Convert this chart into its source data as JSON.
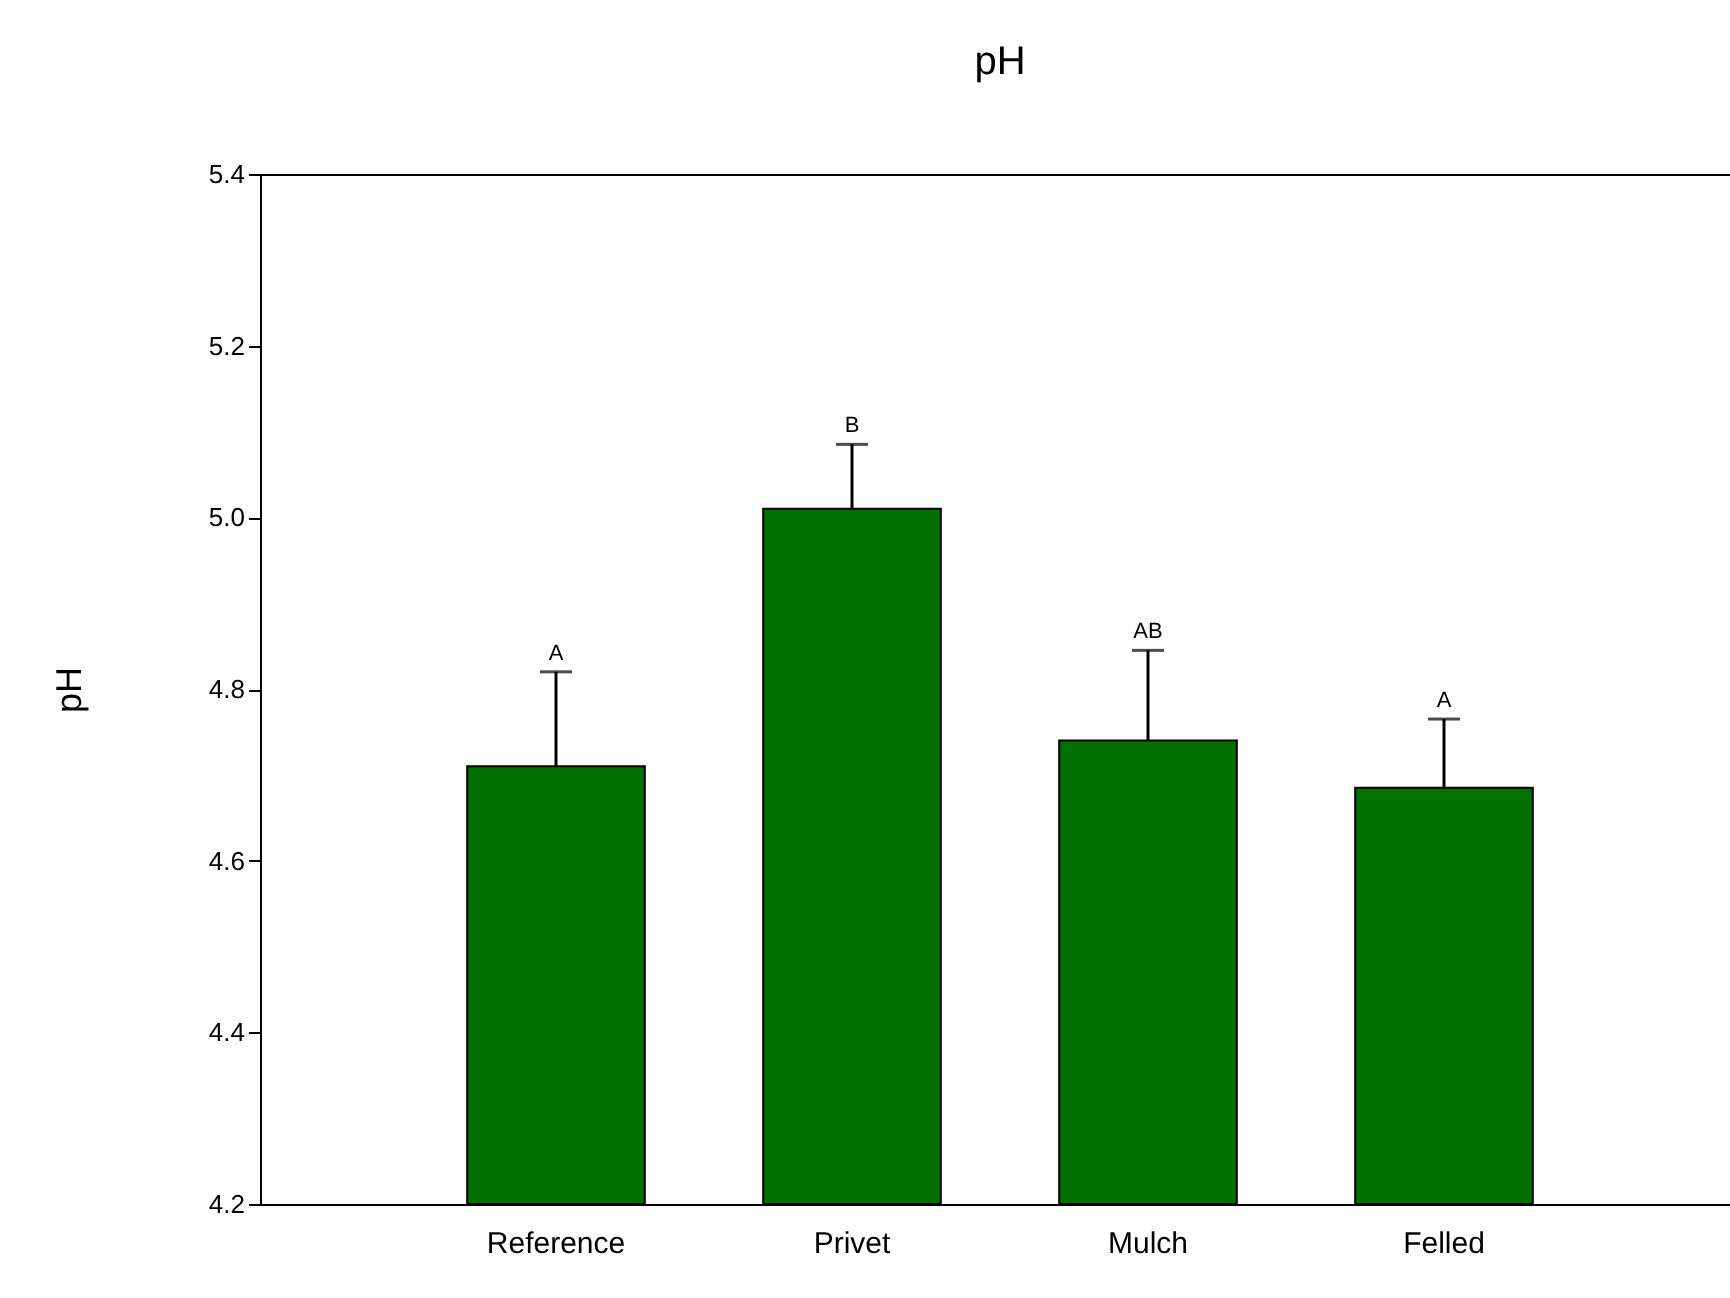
{
  "chart_data": {
    "type": "bar",
    "title": "pH",
    "ylabel": "pH",
    "categories": [
      "Reference",
      "Privet",
      "Mulch",
      "Felled"
    ],
    "values": [
      4.71,
      5.01,
      4.74,
      4.685
    ],
    "errors": [
      [
        4.71,
        4.82
      ],
      [
        5.01,
        5.085
      ],
      [
        4.74,
        4.845
      ],
      [
        4.685,
        4.765
      ]
    ],
    "color": "#007000",
    "ylim": [
      4.2,
      5.4
    ],
    "yticks": [
      {
        "value": 4.2,
        "label": "4.2"
      },
      {
        "value": 4.4,
        "label": "4.4"
      },
      {
        "value": 4.6,
        "label": "4.6"
      },
      {
        "value": 4.8,
        "label": "4.8"
      },
      {
        "value": 5.0,
        "label": "5.0"
      },
      {
        "value": 5.2,
        "label": "5.2"
      },
      {
        "value": 5.4,
        "label": "5.4"
      }
    ],
    "annotations": [
      {
        "text": "A",
        "x": "Reference",
        "y": 4.82
      },
      {
        "text": "B",
        "x": "Privet",
        "y": 5.085
      },
      {
        "text": "AB",
        "x": "Mulch",
        "y": 4.845
      },
      {
        "text": "A",
        "x": "Felled",
        "y": 4.765
      }
    ],
    "grid": false
  }
}
